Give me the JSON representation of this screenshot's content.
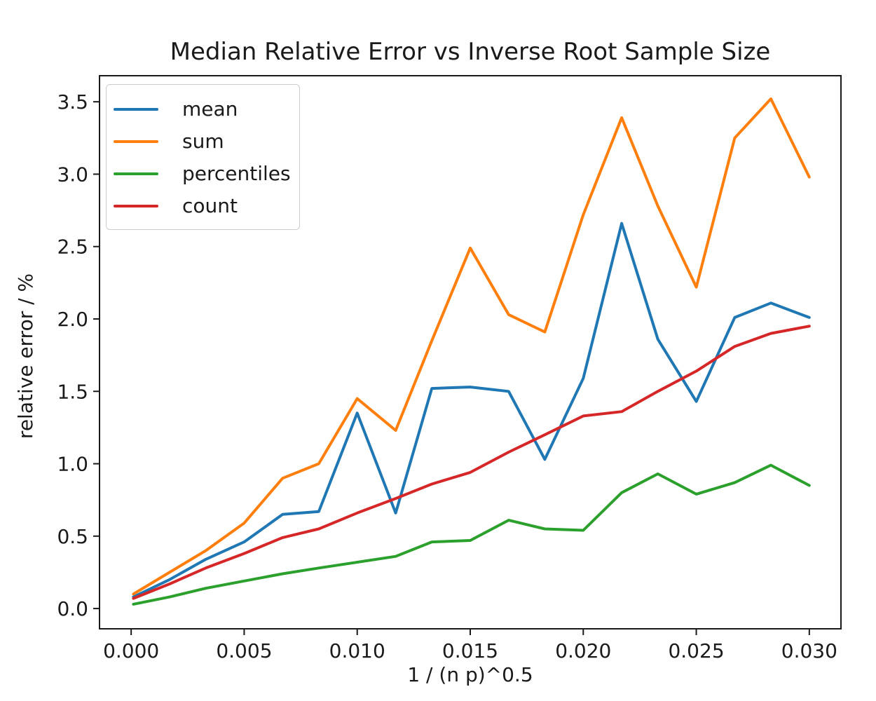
{
  "chart_data": {
    "type": "line",
    "title": "Median Relative Error vs Inverse Root Sample Size",
    "xlabel": "1 / (n p)^0.5",
    "ylabel": "relative error / %",
    "x": [
      0.0001,
      0.0017,
      0.0033,
      0.005,
      0.0067,
      0.0083,
      0.01,
      0.0117,
      0.0133,
      0.015,
      0.0167,
      0.0183,
      0.02,
      0.0217,
      0.0233,
      0.025,
      0.0267,
      0.0283,
      0.03
    ],
    "series": [
      {
        "name": "mean",
        "color": "#1f77b4",
        "values": [
          0.08,
          0.2,
          0.34,
          0.46,
          0.65,
          0.67,
          1.35,
          0.66,
          1.52,
          1.53,
          1.5,
          1.03,
          1.59,
          2.66,
          1.86,
          1.43,
          2.01,
          2.11,
          2.01
        ]
      },
      {
        "name": "sum",
        "color": "#ff7f0e",
        "values": [
          0.1,
          0.25,
          0.4,
          0.59,
          0.9,
          1.0,
          1.45,
          1.23,
          1.85,
          2.49,
          2.03,
          1.91,
          2.72,
          3.39,
          2.78,
          2.22,
          3.25,
          3.52,
          2.98
        ]
      },
      {
        "name": "percentiles",
        "color": "#2ca02c",
        "values": [
          0.03,
          0.08,
          0.14,
          0.19,
          0.24,
          0.28,
          0.32,
          0.36,
          0.46,
          0.47,
          0.61,
          0.55,
          0.54,
          0.8,
          0.93,
          0.79,
          0.87,
          0.99,
          0.85
        ]
      },
      {
        "name": "count",
        "color": "#d62728",
        "values": [
          0.07,
          0.17,
          0.28,
          0.38,
          0.49,
          0.55,
          0.66,
          0.76,
          0.86,
          0.94,
          1.08,
          1.2,
          1.33,
          1.36,
          1.5,
          1.64,
          1.81,
          1.9,
          1.95
        ]
      }
    ],
    "legend": {
      "position": "upper left",
      "labels": [
        "mean",
        "sum",
        "percentiles",
        "count"
      ]
    },
    "axes": {
      "xlim": [
        -0.0014,
        0.0314
      ],
      "ylim": [
        -0.14,
        3.68
      ],
      "x_tick_values": [
        0.0,
        0.005,
        0.01,
        0.015,
        0.02,
        0.025,
        0.03
      ],
      "x_tick_labels": [
        "0.000",
        "0.005",
        "0.010",
        "0.015",
        "0.020",
        "0.025",
        "0.030"
      ],
      "y_tick_values": [
        0.0,
        0.5,
        1.0,
        1.5,
        2.0,
        2.5,
        3.0,
        3.5
      ],
      "y_tick_labels": [
        "0.0",
        "0.5",
        "1.0",
        "1.5",
        "2.0",
        "2.5",
        "3.0",
        "3.5"
      ],
      "grid": false
    },
    "text_color": "#1a1a1a",
    "spine_color": "#1a1a1a",
    "background": "#ffffff"
  }
}
